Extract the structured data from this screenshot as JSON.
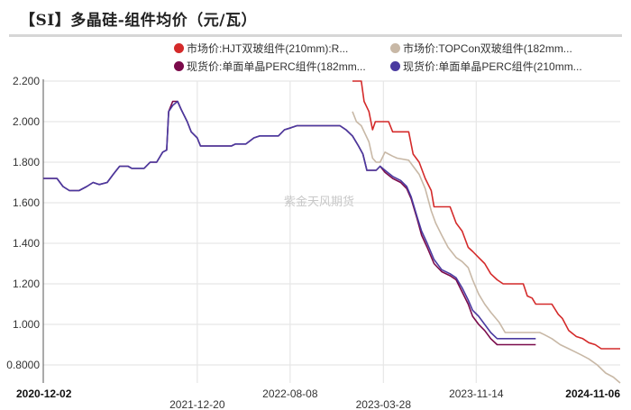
{
  "title": "【SI】多晶硅-组件均价（元/瓦）",
  "watermark": "紫金天风期货",
  "legend": [
    {
      "label": "市场价:HJT双玻组件(210mm):R...",
      "color": "#d42a2a"
    },
    {
      "label": "市场价:TOPCon双玻组件(182mm...",
      "color": "#c8b8a6"
    },
    {
      "label": "现货价:单面单晶PERC组件(182mm...",
      "color": "#7a0a4a"
    },
    {
      "label": "现货价:单面单晶PERC组件(210mm...",
      "color": "#4a3aa0"
    }
  ],
  "y_axis": {
    "ticks": [
      "2.200",
      "2.000",
      "1.800",
      "1.600",
      "1.400",
      "1.200",
      "1.000",
      "0.8000"
    ]
  },
  "x_axis": {
    "ticks": [
      {
        "label": "2020-12-02",
        "bold": true,
        "row": 0
      },
      {
        "label": "2021-12-20",
        "bold": false,
        "row": 1
      },
      {
        "label": "2022-08-08",
        "bold": false,
        "row": 0
      },
      {
        "label": "2023-03-28",
        "bold": false,
        "row": 1
      },
      {
        "label": "2023-11-14",
        "bold": false,
        "row": 0
      },
      {
        "label": "2024-11-06",
        "bold": true,
        "row": 0
      }
    ]
  },
  "chart_data": {
    "type": "line",
    "title": "【SI】多晶硅-组件均价（元/瓦）",
    "xlabel": "",
    "ylabel": "元/瓦",
    "ylim": [
      0.8,
      2.2
    ],
    "x_range": [
      "2020-12-02",
      "2024-11-06"
    ],
    "grid": true,
    "legend_position": "top",
    "series": [
      {
        "name": "市场价:HJT双玻组件(210mm):R...",
        "color": "#d42a2a",
        "points": [
          [
            "2023-01-10",
            2.2
          ],
          [
            "2023-02-01",
            2.2
          ],
          [
            "2023-02-08",
            2.1
          ],
          [
            "2023-02-20",
            2.05
          ],
          [
            "2023-03-01",
            1.96
          ],
          [
            "2023-03-08",
            2.0
          ],
          [
            "2023-04-10",
            2.0
          ],
          [
            "2023-04-20",
            1.95
          ],
          [
            "2023-05-30",
            1.95
          ],
          [
            "2023-06-10",
            1.84
          ],
          [
            "2023-06-25",
            1.8
          ],
          [
            "2023-07-10",
            1.72
          ],
          [
            "2023-07-25",
            1.66
          ],
          [
            "2023-08-01",
            1.58
          ],
          [
            "2023-09-10",
            1.58
          ],
          [
            "2023-09-25",
            1.5
          ],
          [
            "2023-10-10",
            1.46
          ],
          [
            "2023-10-25",
            1.38
          ],
          [
            "2023-11-05",
            1.36
          ],
          [
            "2023-11-20",
            1.33
          ],
          [
            "2023-12-05",
            1.3
          ],
          [
            "2023-12-20",
            1.25
          ],
          [
            "2024-01-05",
            1.22
          ],
          [
            "2024-01-20",
            1.2
          ],
          [
            "2024-03-10",
            1.2
          ],
          [
            "2024-03-20",
            1.14
          ],
          [
            "2024-04-01",
            1.13
          ],
          [
            "2024-04-10",
            1.1
          ],
          [
            "2024-05-20",
            1.1
          ],
          [
            "2024-06-05",
            1.05
          ],
          [
            "2024-06-15",
            1.03
          ],
          [
            "2024-07-01",
            0.97
          ],
          [
            "2024-07-20",
            0.94
          ],
          [
            "2024-08-05",
            0.93
          ],
          [
            "2024-08-20",
            0.91
          ],
          [
            "2024-09-05",
            0.9
          ],
          [
            "2024-09-20",
            0.88
          ],
          [
            "2024-11-06",
            0.88
          ]
        ]
      },
      {
        "name": "市场价:TOPCon双玻组件(182mm...",
        "color": "#c8b8a6",
        "points": [
          [
            "2023-01-10",
            2.05
          ],
          [
            "2023-01-20",
            2.0
          ],
          [
            "2023-02-01",
            1.98
          ],
          [
            "2023-02-20",
            1.9
          ],
          [
            "2023-03-01",
            1.82
          ],
          [
            "2023-03-10",
            1.8
          ],
          [
            "2023-03-20",
            1.8
          ],
          [
            "2023-04-01",
            1.85
          ],
          [
            "2023-04-10",
            1.84
          ],
          [
            "2023-04-20",
            1.83
          ],
          [
            "2023-05-01",
            1.82
          ],
          [
            "2023-05-30",
            1.81
          ],
          [
            "2023-06-10",
            1.78
          ],
          [
            "2023-06-25",
            1.74
          ],
          [
            "2023-07-10",
            1.67
          ],
          [
            "2023-07-25",
            1.56
          ],
          [
            "2023-08-05",
            1.5
          ],
          [
            "2023-08-20",
            1.44
          ],
          [
            "2023-09-05",
            1.38
          ],
          [
            "2023-09-25",
            1.33
          ],
          [
            "2023-10-10",
            1.31
          ],
          [
            "2023-10-25",
            1.28
          ],
          [
            "2023-11-05",
            1.22
          ],
          [
            "2023-11-20",
            1.15
          ],
          [
            "2023-12-05",
            1.1
          ],
          [
            "2023-12-20",
            1.06
          ],
          [
            "2024-01-10",
            1.01
          ],
          [
            "2024-01-25",
            0.96
          ],
          [
            "2024-04-20",
            0.96
          ],
          [
            "2024-05-01",
            0.95
          ],
          [
            "2024-05-20",
            0.93
          ],
          [
            "2024-06-10",
            0.9
          ],
          [
            "2024-07-01",
            0.88
          ],
          [
            "2024-08-01",
            0.85
          ],
          [
            "2024-08-20",
            0.83
          ],
          [
            "2024-09-10",
            0.8
          ],
          [
            "2024-10-01",
            0.76
          ],
          [
            "2024-10-20",
            0.74
          ],
          [
            "2024-11-06",
            0.71
          ]
        ]
      },
      {
        "name": "现货价:单面单晶PERC组件(182mm...",
        "color": "#7a0a4a",
        "points": [
          [
            "2020-12-02",
            1.72
          ],
          [
            "2021-01-05",
            1.72
          ],
          [
            "2021-01-20",
            1.68
          ],
          [
            "2021-02-05",
            1.66
          ],
          [
            "2021-03-01",
            1.66
          ],
          [
            "2021-03-20",
            1.68
          ],
          [
            "2021-04-05",
            1.7
          ],
          [
            "2021-04-20",
            1.69
          ],
          [
            "2021-05-10",
            1.7
          ],
          [
            "2021-05-25",
            1.74
          ],
          [
            "2021-06-10",
            1.78
          ],
          [
            "2021-07-01",
            1.78
          ],
          [
            "2021-07-10",
            1.77
          ],
          [
            "2021-08-10",
            1.77
          ],
          [
            "2021-08-25",
            1.8
          ],
          [
            "2021-09-10",
            1.8
          ],
          [
            "2021-09-25",
            1.85
          ],
          [
            "2021-10-05",
            1.86
          ],
          [
            "2021-10-10",
            2.05
          ],
          [
            "2021-10-20",
            2.1
          ],
          [
            "2021-11-01",
            2.1
          ],
          [
            "2021-11-10",
            2.06
          ],
          [
            "2021-11-25",
            2.0
          ],
          [
            "2021-12-05",
            1.95
          ],
          [
            "2021-12-20",
            1.92
          ],
          [
            "2021-12-28",
            1.88
          ],
          [
            "2022-03-15",
            1.88
          ],
          [
            "2022-03-25",
            1.89
          ],
          [
            "2022-04-20",
            1.89
          ],
          [
            "2022-05-10",
            1.92
          ],
          [
            "2022-05-25",
            1.93
          ],
          [
            "2022-07-10",
            1.93
          ],
          [
            "2022-07-25",
            1.96
          ],
          [
            "2022-08-10",
            1.97
          ],
          [
            "2022-08-25",
            1.98
          ],
          [
            "2022-12-10",
            1.98
          ],
          [
            "2022-12-25",
            1.96
          ],
          [
            "2023-01-10",
            1.93
          ],
          [
            "2023-01-25",
            1.88
          ],
          [
            "2023-02-05",
            1.84
          ],
          [
            "2023-02-15",
            1.76
          ],
          [
            "2023-03-10",
            1.76
          ],
          [
            "2023-03-20",
            1.78
          ],
          [
            "2023-04-01",
            1.75
          ],
          [
            "2023-04-20",
            1.72
          ],
          [
            "2023-05-10",
            1.7
          ],
          [
            "2023-05-25",
            1.67
          ],
          [
            "2023-06-05",
            1.62
          ],
          [
            "2023-06-20",
            1.52
          ],
          [
            "2023-07-01",
            1.44
          ],
          [
            "2023-07-15",
            1.38
          ],
          [
            "2023-08-01",
            1.3
          ],
          [
            "2023-08-20",
            1.26
          ],
          [
            "2023-09-10",
            1.24
          ],
          [
            "2023-09-25",
            1.22
          ],
          [
            "2023-10-10",
            1.16
          ],
          [
            "2023-10-25",
            1.1
          ],
          [
            "2023-11-05",
            1.04
          ],
          [
            "2023-11-20",
            1.0
          ],
          [
            "2023-12-05",
            0.97
          ],
          [
            "2023-12-20",
            0.93
          ],
          [
            "2024-01-05",
            0.9
          ],
          [
            "2024-04-10",
            0.9
          ]
        ]
      },
      {
        "name": "现货价:单面单晶PERC组件(210mm...",
        "color": "#4a3aa0",
        "points": [
          [
            "2020-12-02",
            1.72
          ],
          [
            "2021-01-05",
            1.72
          ],
          [
            "2021-01-20",
            1.68
          ],
          [
            "2021-02-05",
            1.66
          ],
          [
            "2021-03-01",
            1.66
          ],
          [
            "2021-03-20",
            1.68
          ],
          [
            "2021-04-05",
            1.7
          ],
          [
            "2021-04-20",
            1.69
          ],
          [
            "2021-05-10",
            1.7
          ],
          [
            "2021-05-25",
            1.74
          ],
          [
            "2021-06-10",
            1.78
          ],
          [
            "2021-07-01",
            1.78
          ],
          [
            "2021-07-10",
            1.77
          ],
          [
            "2021-08-10",
            1.77
          ],
          [
            "2021-08-25",
            1.8
          ],
          [
            "2021-09-10",
            1.8
          ],
          [
            "2021-09-25",
            1.85
          ],
          [
            "2021-10-05",
            1.86
          ],
          [
            "2021-10-10",
            2.05
          ],
          [
            "2021-10-20",
            2.08
          ],
          [
            "2021-11-01",
            2.1
          ],
          [
            "2021-11-10",
            2.06
          ],
          [
            "2021-11-25",
            2.0
          ],
          [
            "2021-12-05",
            1.95
          ],
          [
            "2021-12-20",
            1.92
          ],
          [
            "2021-12-28",
            1.88
          ],
          [
            "2022-03-15",
            1.88
          ],
          [
            "2022-03-25",
            1.89
          ],
          [
            "2022-04-20",
            1.89
          ],
          [
            "2022-05-10",
            1.92
          ],
          [
            "2022-05-25",
            1.93
          ],
          [
            "2022-07-10",
            1.93
          ],
          [
            "2022-07-25",
            1.96
          ],
          [
            "2022-08-10",
            1.97
          ],
          [
            "2022-08-25",
            1.98
          ],
          [
            "2022-12-10",
            1.98
          ],
          [
            "2022-12-25",
            1.96
          ],
          [
            "2023-01-10",
            1.93
          ],
          [
            "2023-01-25",
            1.88
          ],
          [
            "2023-02-05",
            1.84
          ],
          [
            "2023-02-15",
            1.76
          ],
          [
            "2023-03-10",
            1.76
          ],
          [
            "2023-03-20",
            1.78
          ],
          [
            "2023-04-01",
            1.76
          ],
          [
            "2023-04-20",
            1.73
          ],
          [
            "2023-05-10",
            1.71
          ],
          [
            "2023-05-25",
            1.68
          ],
          [
            "2023-06-05",
            1.63
          ],
          [
            "2023-06-20",
            1.53
          ],
          [
            "2023-07-01",
            1.46
          ],
          [
            "2023-07-15",
            1.4
          ],
          [
            "2023-08-01",
            1.32
          ],
          [
            "2023-08-20",
            1.27
          ],
          [
            "2023-09-10",
            1.25
          ],
          [
            "2023-09-25",
            1.23
          ],
          [
            "2023-10-10",
            1.18
          ],
          [
            "2023-10-25",
            1.12
          ],
          [
            "2023-11-05",
            1.07
          ],
          [
            "2023-11-20",
            1.04
          ],
          [
            "2023-12-05",
            1.0
          ],
          [
            "2023-12-20",
            0.96
          ],
          [
            "2024-01-05",
            0.93
          ],
          [
            "2024-04-10",
            0.93
          ]
        ]
      }
    ]
  }
}
